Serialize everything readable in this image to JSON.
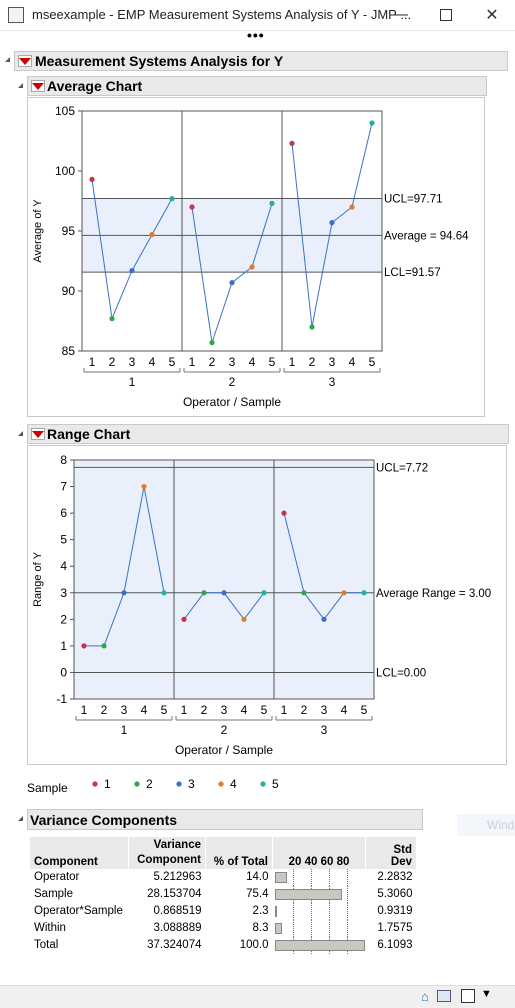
{
  "window": {
    "title": "mseexample - EMP Measurement Systems Analysis of Y - JMP ...",
    "app_icon_text": "▤"
  },
  "header": {
    "title": "Measurement Systems Analysis for Y"
  },
  "average_chart": {
    "title": "Average Chart",
    "ylabel": "Average of Y",
    "xlabel": "Operator / Sample",
    "ucl_label": "UCL=97.71",
    "avg_label": "Average = 94.64",
    "lcl_label": "LCL=91.57",
    "y_ticks": [
      "105",
      "100",
      "95",
      "90",
      "85"
    ],
    "operators": [
      "1",
      "2",
      "3"
    ],
    "samples": [
      "1",
      "2",
      "3",
      "4",
      "5"
    ]
  },
  "range_chart": {
    "title": "Range Chart",
    "ylabel": "Range of Y",
    "xlabel": "Operator / Sample",
    "ucl_label": "UCL=7.72",
    "avg_label": "Average Range = 3.00",
    "lcl_label": "LCL=0.00",
    "y_ticks": [
      "8",
      "7",
      "6",
      "5",
      "4",
      "3",
      "2",
      "1",
      "0",
      "-1"
    ],
    "operators": [
      "1",
      "2",
      "3"
    ],
    "samples": [
      "1",
      "2",
      "3",
      "4",
      "5"
    ]
  },
  "legend": {
    "title": "Sample",
    "items": [
      {
        "label": "1",
        "color": "#c8334a"
      },
      {
        "label": "2",
        "color": "#2ba84a"
      },
      {
        "label": "3",
        "color": "#3a6fc9"
      },
      {
        "label": "4",
        "color": "#e07b2a"
      },
      {
        "label": "5",
        "color": "#1fb39a"
      }
    ]
  },
  "variance_components": {
    "title": "Variance Components",
    "columns": [
      "Component",
      "Variance Component",
      "% of Total",
      "20 40 60 80",
      "Std Dev"
    ],
    "header_component": "Component",
    "header_variance_1": "Variance",
    "header_variance_2": "Component",
    "header_pct": "% of Total",
    "header_bar": "20 40 60 80",
    "header_sd": "Std Dev",
    "rows": [
      {
        "component": "Operator",
        "variance": "5.212963",
        "pct": "14.0",
        "pct_value": 14.0,
        "sd": "2.2832"
      },
      {
        "component": "Sample",
        "variance": "28.153704",
        "pct": "75.4",
        "pct_value": 75.4,
        "sd": "5.3060"
      },
      {
        "component": "Operator*Sample",
        "variance": "0.868519",
        "pct": "2.3",
        "pct_value": 2.3,
        "sd": "0.9319"
      },
      {
        "component": "Within",
        "variance": "3.088889",
        "pct": "8.3",
        "pct_value": 8.3,
        "sd": "1.7575"
      },
      {
        "component": "Total",
        "variance": "37.324074",
        "pct": "100.0",
        "pct_value": 100.0,
        "sd": "6.1093"
      }
    ]
  },
  "faded_text": "Wind",
  "chart_data": [
    {
      "type": "line",
      "title": "Average Chart",
      "xlabel": "Operator / Sample",
      "ylabel": "Average of Y",
      "ylim": [
        85,
        105
      ],
      "yticks": [
        85,
        90,
        95,
        100,
        105
      ],
      "groups": [
        "1",
        "2",
        "3"
      ],
      "categories": [
        "1",
        "2",
        "3",
        "4",
        "5"
      ],
      "series": [
        {
          "name": "1",
          "values": [
            99.3,
            87.7,
            91.7,
            94.7,
            97.7
          ]
        },
        {
          "name": "2",
          "values": [
            97.0,
            85.7,
            90.7,
            92.0,
            97.3
          ]
        },
        {
          "name": "3",
          "values": [
            102.3,
            87.0,
            95.7,
            97.0,
            104.0
          ]
        }
      ],
      "point_colors": [
        "#c8334a",
        "#2ba84a",
        "#3a6fc9",
        "#e07b2a",
        "#1fb39a"
      ],
      "ucl": 97.71,
      "center": 94.64,
      "lcl": 91.57,
      "grid": false
    },
    {
      "type": "line",
      "title": "Range Chart",
      "xlabel": "Operator / Sample",
      "ylabel": "Range of Y",
      "ylim": [
        -1,
        8
      ],
      "yticks": [
        -1,
        0,
        1,
        2,
        3,
        4,
        5,
        6,
        7,
        8
      ],
      "groups": [
        "1",
        "2",
        "3"
      ],
      "categories": [
        "1",
        "2",
        "3",
        "4",
        "5"
      ],
      "series": [
        {
          "name": "1",
          "values": [
            1,
            1,
            3,
            7,
            3
          ]
        },
        {
          "name": "2",
          "values": [
            2,
            3,
            3,
            2,
            3
          ]
        },
        {
          "name": "3",
          "values": [
            6,
            3,
            2,
            3,
            3
          ]
        }
      ],
      "point_colors": [
        "#c8334a",
        "#2ba84a",
        "#3a6fc9",
        "#e07b2a",
        "#1fb39a"
      ],
      "ucl": 7.72,
      "center": 3.0,
      "lcl": 0.0,
      "grid": false
    }
  ]
}
